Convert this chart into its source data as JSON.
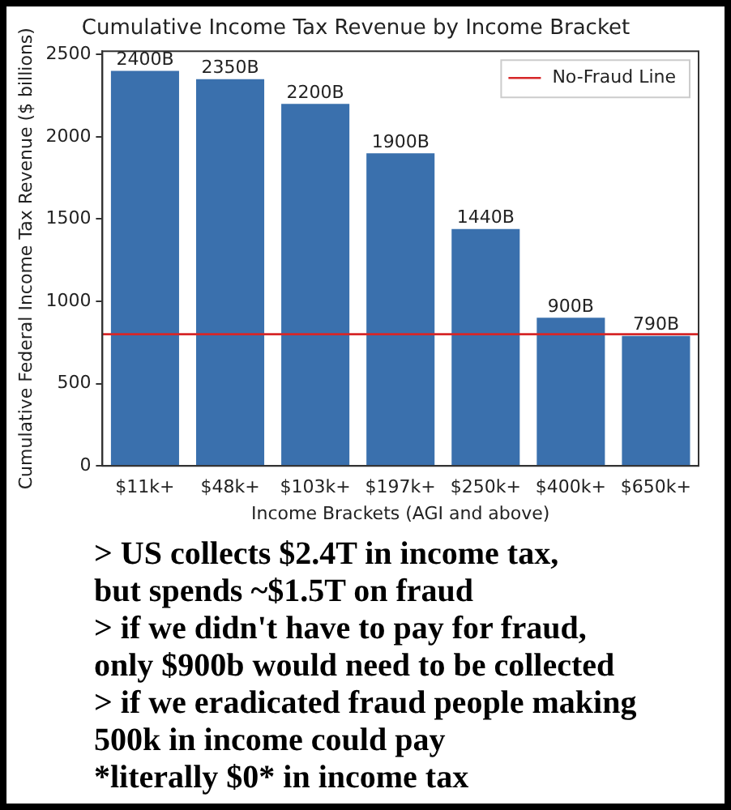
{
  "chart_data": {
    "type": "bar",
    "title": "Cumulative Income Tax Revenue by Income Bracket",
    "xlabel": "Income Brackets (AGI and above)",
    "ylabel": "Cumulative Federal Income Tax Revenue ($ billions)",
    "categories": [
      "$11k+",
      "$48k+",
      "$103k+",
      "$197k+",
      "$250k+",
      "$400k+",
      "$650k+"
    ],
    "values": [
      2400,
      2350,
      2200,
      1900,
      1440,
      900,
      790
    ],
    "value_labels": [
      "2400B",
      "2350B",
      "2200B",
      "1900B",
      "1440B",
      "900B",
      "790B"
    ],
    "color": "#3a70ad",
    "ylim": [
      0,
      2520
    ],
    "yticks": [
      0,
      500,
      1000,
      1500,
      2000,
      2500
    ],
    "ref_lines": [
      {
        "axis": "y",
        "value": 800,
        "label": "No-Fraud Line",
        "color": "#d62728"
      }
    ],
    "legend": "top right",
    "annotations": [
      "> US collects $2.4T in income tax,",
      "but spends ~$1.5T on fraud",
      "> if we didn't have to pay for fraud,",
      "only $900b would need to be collected",
      "> if we eradicated fraud people making",
      "500k in income could pay",
      "*literally $0* in income tax"
    ]
  }
}
